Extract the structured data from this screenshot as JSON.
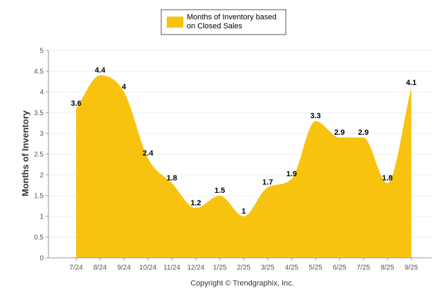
{
  "chart_data": {
    "type": "area",
    "title": "",
    "legend": [
      "Months of Inventory based",
      "on Closed Sales"
    ],
    "legend_position": "top-center",
    "xlabel": "",
    "ylabel": "Months of Inventory",
    "ylim": [
      0,
      5
    ],
    "yticks": [
      "0",
      "0.5",
      "1",
      "1.5",
      "2",
      "2.5",
      "3",
      "3.5",
      "4",
      "4.5",
      "5"
    ],
    "grid": true,
    "categories": [
      "7/24",
      "8/24",
      "9/24",
      "10/24",
      "11/24",
      "12/24",
      "1/25",
      "2/25",
      "3/25",
      "4/25",
      "5/25",
      "6/25",
      "7/25",
      "8/25",
      "9/25"
    ],
    "series": [
      {
        "name": "Months of Inventory based on Closed Sales",
        "values": [
          3.6,
          4.4,
          4,
          2.4,
          1.8,
          1.2,
          1.5,
          1,
          1.7,
          1.9,
          3.3,
          2.9,
          2.9,
          1.8,
          4.1
        ],
        "labels": [
          "3.6",
          "4.4",
          "4",
          "2.4",
          "1.8",
          "1.2",
          "1.5",
          "1",
          "1.7",
          "1.9",
          "3.3",
          "2.9",
          "2.9",
          "1.8",
          "4.1"
        ],
        "color": "#f7c30f"
      }
    ]
  },
  "footer": {
    "copyright": "Copyright © Trendgraphix, Inc."
  }
}
